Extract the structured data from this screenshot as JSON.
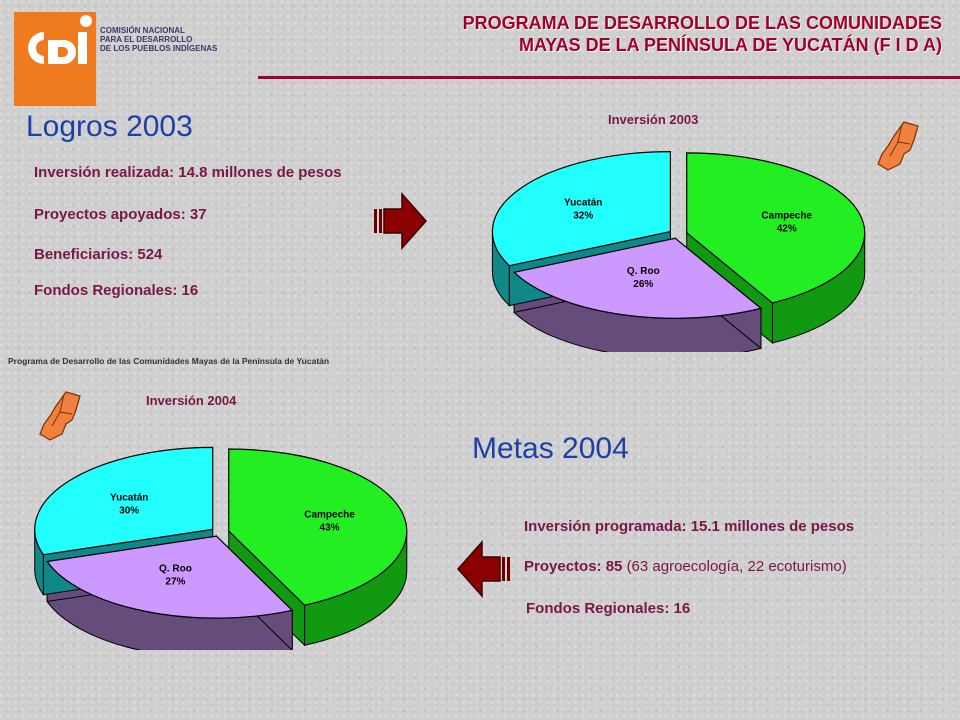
{
  "logo": {
    "mark": "cdi",
    "lines": [
      "COMISIÓN NACIONAL",
      "PARA EL DESARROLLO",
      "DE LOS PUEBLOS INDÍGENAS"
    ]
  },
  "header": {
    "title_line1": "PROGRAMA DE DESARROLLO DE LAS COMUNIDADES",
    "title_line2": "MAYAS DE LA PENÍNSULA DE YUCATÁN (F I D A)"
  },
  "logros": {
    "title": "Logros 2003",
    "items": [
      "Inversión realizada:  14.8 millones de pesos",
      "Proyectos apoyados:  37",
      "Beneficiarios: 524",
      "Fondos Regionales:  16"
    ]
  },
  "metas": {
    "title": "Metas 2004",
    "inversion": "Inversión programada:  15.1 millones de pesos",
    "proyectos_bold": "Proyectos: 85",
    "proyectos_detail": "(63 agroecología, 22 ecoturismo)",
    "fondos": "Fondos Regionales:  16"
  },
  "footnote": "Programa de Desarrollo de las Comunidades Mayas de la Península de Yucatán",
  "colors": {
    "campeche": "#22ee22",
    "qroo": "#cc99ff",
    "yucatan": "#22ffff",
    "arrow": "#8b0000",
    "map": "#f08040"
  },
  "icons": [
    "right-arrow-icon",
    "left-arrow-icon",
    "peninsula-map-icon"
  ],
  "chart_data": [
    {
      "type": "pie",
      "title": "Inversión 2003",
      "categories": [
        "Campeche",
        "Q. Roo",
        "Yucatán"
      ],
      "values": [
        42,
        26,
        32
      ],
      "labels": [
        "42%",
        "26%",
        "32%"
      ]
    },
    {
      "type": "pie",
      "title": "Inversión 2004",
      "categories": [
        "Campeche",
        "Q. Roo",
        "Yucatán"
      ],
      "values": [
        43,
        27,
        30
      ],
      "labels": [
        "43%",
        "27%",
        "30%"
      ]
    }
  ]
}
